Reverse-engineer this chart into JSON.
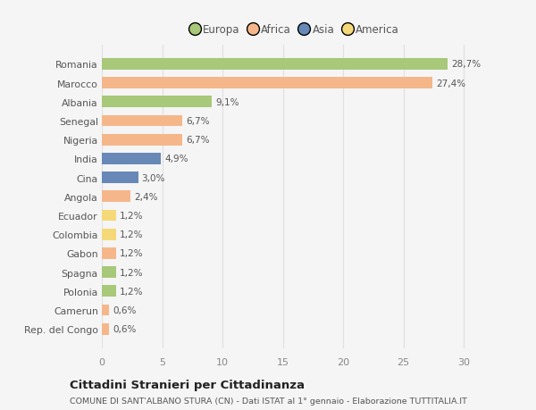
{
  "categories": [
    "Rep. del Congo",
    "Camerun",
    "Polonia",
    "Spagna",
    "Gabon",
    "Colombia",
    "Ecuador",
    "Angola",
    "Cina",
    "India",
    "Nigeria",
    "Senegal",
    "Albania",
    "Marocco",
    "Romania"
  ],
  "values": [
    0.6,
    0.6,
    1.2,
    1.2,
    1.2,
    1.2,
    1.2,
    2.4,
    3.0,
    4.9,
    6.7,
    6.7,
    9.1,
    27.4,
    28.7
  ],
  "labels": [
    "0,6%",
    "0,6%",
    "1,2%",
    "1,2%",
    "1,2%",
    "1,2%",
    "1,2%",
    "2,4%",
    "3,0%",
    "4,9%",
    "6,7%",
    "6,7%",
    "9,1%",
    "27,4%",
    "28,7%"
  ],
  "colors": [
    "#f5b78a",
    "#f5b78a",
    "#a8c87a",
    "#a8c87a",
    "#f5b78a",
    "#f5d878",
    "#f5d878",
    "#f5b78a",
    "#6888b8",
    "#6888b8",
    "#f5b78a",
    "#f5b78a",
    "#a8c87a",
    "#f5b78a",
    "#a8c87a"
  ],
  "continent_colors": {
    "Europa": "#a8c87a",
    "Africa": "#f5b78a",
    "Asia": "#6888b8",
    "America": "#f5d878"
  },
  "legend_labels": [
    "Europa",
    "Africa",
    "Asia",
    "America"
  ],
  "title": "Cittadini Stranieri per Cittadinanza",
  "subtitle": "COMUNE DI SANT'ALBANO STURA (CN) - Dati ISTAT al 1° gennaio - Elaborazione TUTTITALIA.IT",
  "xlim": [
    0,
    32
  ],
  "xticks": [
    0,
    5,
    10,
    15,
    20,
    25,
    30
  ],
  "background_color": "#f5f5f5",
  "bar_height": 0.6,
  "grid_color": "#e0e0e0"
}
